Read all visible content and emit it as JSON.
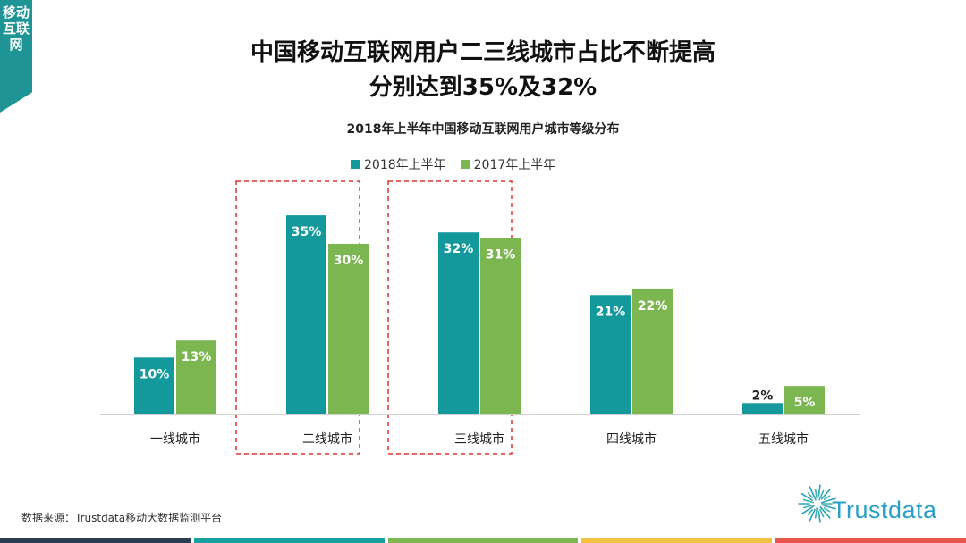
{
  "side_tab": {
    "label": "移动互联网"
  },
  "header": {
    "title_line1": "中国移动互联网用户二三线城市占比不断提高",
    "title_line2": "分别达到35%及32%"
  },
  "source": "数据来源：Trustdata移动大数据监测平台",
  "logo": {
    "text": "Trustdata"
  },
  "colors": {
    "series_2018": "#13999b",
    "series_2017": "#7bb651",
    "highlight": "#e03030",
    "side_tab": "#1f9494",
    "footer": [
      "#2b3e50",
      "#16a0a0",
      "#7bb651",
      "#f4c242",
      "#e8554e"
    ]
  },
  "chart_data": {
    "type": "bar",
    "title": "2018年上半年中国移动互联网用户城市等级分布",
    "categories": [
      "一线城市",
      "二线城市",
      "三线城市",
      "四线城市",
      "五线城市"
    ],
    "series": [
      {
        "name": "2018年上半年",
        "values": [
          10,
          35,
          32,
          21,
          2
        ],
        "labels": [
          "10%",
          "35%",
          "32%",
          "21%",
          "2%"
        ]
      },
      {
        "name": "2017年上半年",
        "values": [
          13,
          30,
          31,
          22,
          5
        ],
        "labels": [
          "13%",
          "30%",
          "31%",
          "22%",
          "5%"
        ]
      }
    ],
    "highlighted_categories": [
      "二线城市",
      "三线城市"
    ],
    "ylim": [
      0,
      38
    ],
    "grid": false,
    "legend": "top-center"
  }
}
